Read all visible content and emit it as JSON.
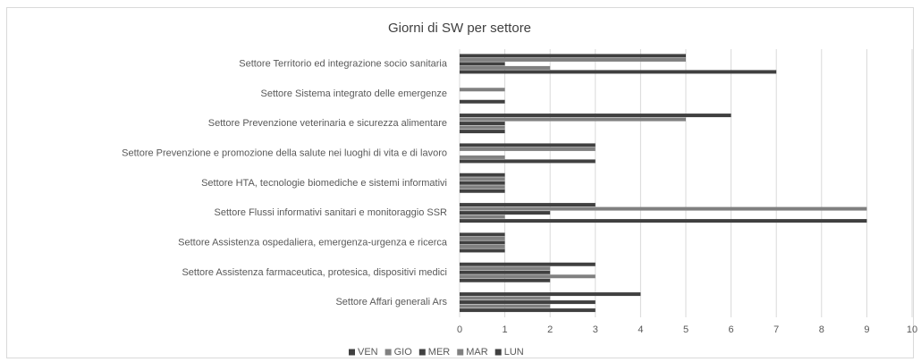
{
  "chart_data": {
    "type": "hbar",
    "title": "Giorni di SW per settore",
    "categories": [
      "Settore Affari generali Ars",
      "Settore Assistenza farmaceutica, protesica, dispositivi medici",
      "Settore Assistenza ospedaliera, emergenza-urgenza e ricerca",
      "Settore Flussi informativi sanitari e monitoraggio SSR",
      "Settore HTA, tecnologie biomediche e sistemi informativi",
      "Settore Prevenzione e promozione della salute nei luoghi di vita e di lavoro",
      "Settore Prevenzione veterinaria e sicurezza alimentare",
      "Settore Sistema integrato delle emergenze",
      "Settore Territorio ed integrazione socio sanitaria"
    ],
    "series": [
      {
        "name": "VEN",
        "color": "#404040",
        "values": [
          3,
          2,
          1,
          9,
          1,
          3,
          1,
          1,
          7
        ]
      },
      {
        "name": "GIO",
        "color": "#808080",
        "values": [
          2,
          3,
          1,
          1,
          1,
          1,
          1,
          0,
          2
        ]
      },
      {
        "name": "MER",
        "color": "#404040",
        "values": [
          3,
          2,
          1,
          2,
          1,
          0,
          1,
          0,
          1
        ]
      },
      {
        "name": "MAR",
        "color": "#808080",
        "values": [
          2,
          2,
          1,
          9,
          1,
          3,
          5,
          1,
          5
        ]
      },
      {
        "name": "LUN",
        "color": "#404040",
        "values": [
          4,
          3,
          1,
          3,
          1,
          3,
          6,
          0,
          5
        ]
      }
    ],
    "xlim": [
      0,
      10
    ],
    "xticks": [
      0,
      1,
      2,
      3,
      4,
      5,
      6,
      7,
      8,
      9,
      10
    ],
    "grid": true,
    "legend": "bottom"
  }
}
